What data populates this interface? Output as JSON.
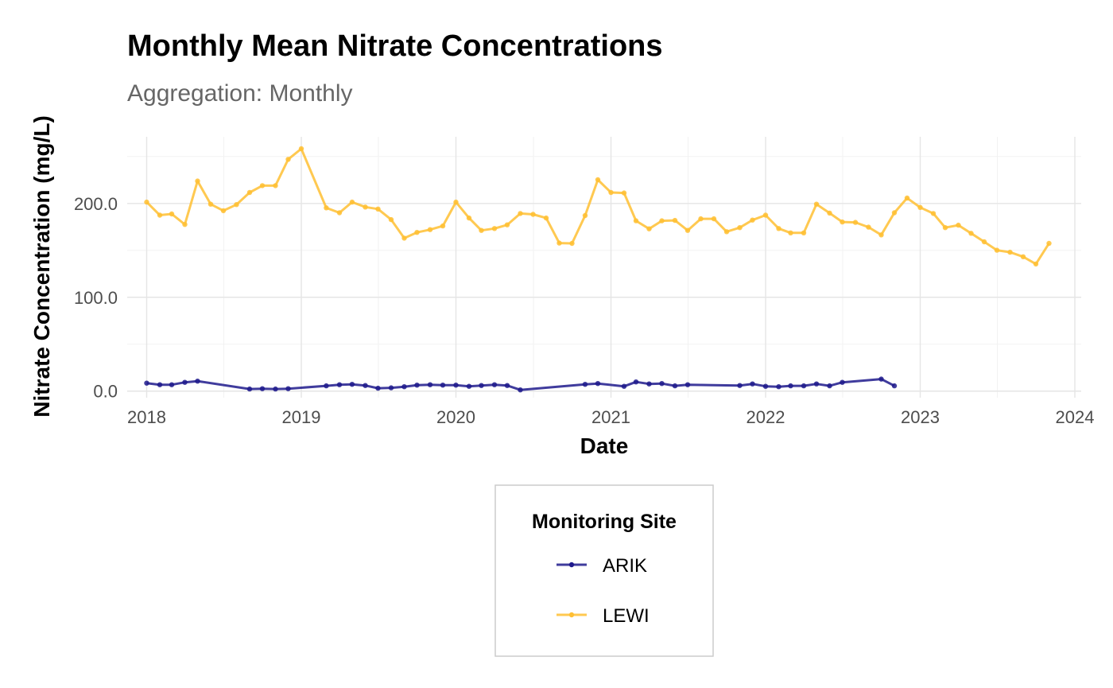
{
  "chart_data": {
    "type": "line",
    "title": "Monthly Mean Nitrate Concentrations",
    "subtitle": "Aggregation: Monthly",
    "xlabel": "Date",
    "ylabel": "Nitrate Concentration (mg/L)",
    "xlim": [
      "2017-11-16",
      "2024-01-16"
    ],
    "ylim": [
      -7,
      271
    ],
    "x_ticks": [
      "2018-01-01",
      "2019-01-01",
      "2020-01-01",
      "2021-01-01",
      "2022-01-01",
      "2023-01-01",
      "2024-01-01"
    ],
    "x_tick_labels": [
      "2018",
      "2019",
      "2020",
      "2021",
      "2022",
      "2023",
      "2024"
    ],
    "y_ticks": [
      0,
      100,
      200
    ],
    "y_tick_labels": [
      "0.0",
      "100.0",
      "200.0"
    ],
    "grid": true,
    "legend": {
      "title": "Monitoring Site",
      "position": "bottom",
      "entries": [
        "ARIK",
        "LEWI"
      ]
    },
    "series": [
      {
        "name": "ARIK",
        "color": "#1f1a8c",
        "points": [
          [
            "2018-01-01",
            8.5
          ],
          [
            "2018-02-01",
            6.8
          ],
          [
            "2018-03-01",
            6.8
          ],
          [
            "2018-04-01",
            9.4
          ],
          [
            "2018-05-01",
            10.6
          ],
          [
            "2018-09-01",
            2.2
          ],
          [
            "2018-10-01",
            2.6
          ],
          [
            "2018-11-01",
            2.2
          ],
          [
            "2018-12-01",
            2.6
          ],
          [
            "2019-03-01",
            5.6
          ],
          [
            "2019-04-01",
            6.8
          ],
          [
            "2019-05-01",
            7.2
          ],
          [
            "2019-06-01",
            6.0
          ],
          [
            "2019-07-01",
            3.1
          ],
          [
            "2019-08-01",
            3.5
          ],
          [
            "2019-09-01",
            4.7
          ],
          [
            "2019-10-01",
            6.4
          ],
          [
            "2019-11-01",
            6.8
          ],
          [
            "2019-12-01",
            6.4
          ],
          [
            "2020-01-01",
            6.4
          ],
          [
            "2020-02-01",
            5.1
          ],
          [
            "2020-03-01",
            6.0
          ],
          [
            "2020-04-01",
            6.8
          ],
          [
            "2020-05-01",
            6.0
          ],
          [
            "2020-06-01",
            1.3
          ],
          [
            "2020-11-01",
            7.2
          ],
          [
            "2020-12-01",
            8.1
          ],
          [
            "2021-02-01",
            5.1
          ],
          [
            "2021-03-01",
            9.8
          ],
          [
            "2021-04-01",
            7.7
          ],
          [
            "2021-05-01",
            8.1
          ],
          [
            "2021-06-01",
            5.6
          ],
          [
            "2021-07-01",
            6.8
          ],
          [
            "2021-11-01",
            6.0
          ],
          [
            "2021-12-01",
            7.7
          ],
          [
            "2022-01-01",
            5.1
          ],
          [
            "2022-02-01",
            4.7
          ],
          [
            "2022-03-01",
            5.6
          ],
          [
            "2022-04-01",
            5.6
          ],
          [
            "2022-05-01",
            7.7
          ],
          [
            "2022-06-01",
            5.6
          ],
          [
            "2022-07-01",
            9.4
          ],
          [
            "2022-10-01",
            12.8
          ],
          [
            "2022-11-01",
            5.6
          ]
        ]
      },
      {
        "name": "LEWI",
        "color": "#ffbf33",
        "points": [
          [
            "2018-01-01",
            201.4
          ],
          [
            "2018-02-01",
            187.5
          ],
          [
            "2018-03-01",
            188.8
          ],
          [
            "2018-04-01",
            177.6
          ],
          [
            "2018-05-01",
            223.9
          ],
          [
            "2018-06-01",
            199.2
          ],
          [
            "2018-07-01",
            192.3
          ],
          [
            "2018-08-01",
            198.8
          ],
          [
            "2018-09-01",
            211.7
          ],
          [
            "2018-10-01",
            219.0
          ],
          [
            "2018-11-01",
            219.0
          ],
          [
            "2018-12-01",
            247.0
          ],
          [
            "2019-01-01",
            258.3
          ],
          [
            "2019-03-01",
            195.3
          ],
          [
            "2019-04-01",
            190.1
          ],
          [
            "2019-05-01",
            201.4
          ],
          [
            "2019-06-01",
            196.2
          ],
          [
            "2019-07-01",
            194.0
          ],
          [
            "2019-08-01",
            182.8
          ],
          [
            "2019-09-01",
            163.0
          ],
          [
            "2019-10-01",
            169.1
          ],
          [
            "2019-11-01",
            172.1
          ],
          [
            "2019-12-01",
            176.0
          ],
          [
            "2020-01-01",
            201.4
          ],
          [
            "2020-02-01",
            184.5
          ],
          [
            "2020-03-01",
            171.2
          ],
          [
            "2020-04-01",
            173.3
          ],
          [
            "2020-05-01",
            177.2
          ],
          [
            "2020-06-01",
            189.3
          ],
          [
            "2020-07-01",
            188.4
          ],
          [
            "2020-08-01",
            184.5
          ],
          [
            "2020-09-01",
            157.8
          ],
          [
            "2020-10-01",
            157.4
          ],
          [
            "2020-11-01",
            187.1
          ],
          [
            "2020-12-01",
            225.2
          ],
          [
            "2021-01-01",
            211.7
          ],
          [
            "2021-02-01",
            211.2
          ],
          [
            "2021-03-01",
            181.5
          ],
          [
            "2021-04-01",
            172.9
          ],
          [
            "2021-05-01",
            181.5
          ],
          [
            "2021-06-01",
            181.9
          ],
          [
            "2021-07-01",
            171.2
          ],
          [
            "2021-08-01",
            183.6
          ],
          [
            "2021-09-01",
            183.6
          ],
          [
            "2021-10-01",
            169.9
          ],
          [
            "2021-11-01",
            174.2
          ],
          [
            "2021-12-01",
            182.3
          ],
          [
            "2022-01-01",
            187.5
          ],
          [
            "2022-02-01",
            173.3
          ],
          [
            "2022-03-01",
            168.6
          ],
          [
            "2022-04-01",
            168.6
          ],
          [
            "2022-05-01",
            199.2
          ],
          [
            "2022-06-01",
            189.7
          ],
          [
            "2022-07-01",
            180.2
          ],
          [
            "2022-08-01",
            179.8
          ],
          [
            "2022-09-01",
            174.7
          ],
          [
            "2022-10-01",
            166.5
          ],
          [
            "2022-11-01",
            190.1
          ],
          [
            "2022-12-01",
            205.7
          ],
          [
            "2023-01-01",
            195.7
          ],
          [
            "2023-02-01",
            189.3
          ],
          [
            "2023-03-01",
            174.2
          ],
          [
            "2023-04-01",
            176.8
          ],
          [
            "2023-05-01",
            168.2
          ],
          [
            "2023-06-01",
            159.1
          ],
          [
            "2023-07-01",
            150.1
          ],
          [
            "2023-08-01",
            148.0
          ],
          [
            "2023-09-01",
            143.2
          ],
          [
            "2023-10-01",
            135.5
          ],
          [
            "2023-11-01",
            157.4
          ]
        ]
      }
    ]
  }
}
